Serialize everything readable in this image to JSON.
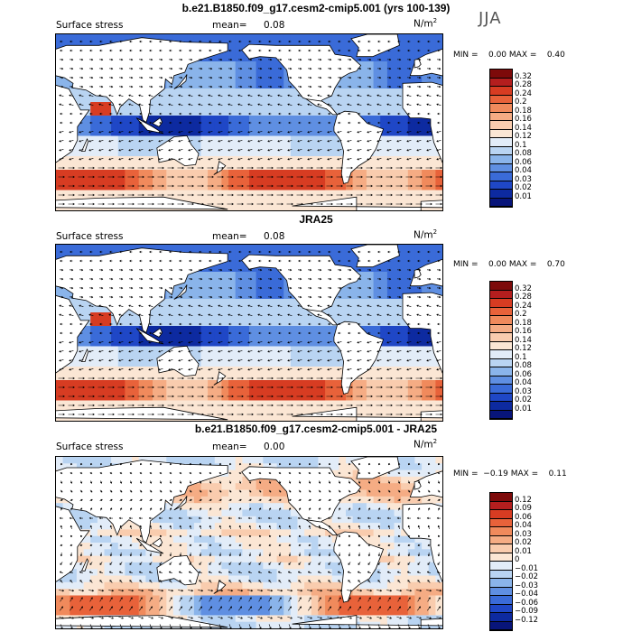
{
  "season": "JJA",
  "panels": [
    {
      "title": "b.e21.B1850.f09_g17.cesm2-cmip5.001 (yrs 100-139)",
      "left_label": "Surface stress",
      "mean_label": "mean=",
      "mean_value": "0.08",
      "unit": "N/m",
      "unit_exp": "2",
      "minmax": "MIN =    0.00 MAX =    0.40",
      "colorbar_labels": [
        "0.32",
        "0.28",
        "0.24",
        "0.2",
        "0.18",
        "0.16",
        "0.14",
        "0.12",
        "0.1",
        "0.08",
        "0.06",
        "0.04",
        "0.03",
        "0.02",
        "0.01"
      ],
      "colorbar_colors": [
        "#7d0a0a",
        "#b41e1e",
        "#d73c22",
        "#e8623a",
        "#f08a5c",
        "#f5ac84",
        "#f9ccae",
        "#fbe6d4",
        "#e2ecf8",
        "#b9d4f2",
        "#8ab4ea",
        "#5f8fe2",
        "#3a6bd8",
        "#1f47c6",
        "#0d2aa0",
        "#08157a"
      ],
      "field": "abs"
    },
    {
      "title": "JRA25",
      "left_label": "Surface stress",
      "mean_label": "mean=",
      "mean_value": "0.08",
      "unit": "N/m",
      "unit_exp": "2",
      "minmax": "MIN =    0.00 MAX =    0.70",
      "colorbar_labels": [
        "0.32",
        "0.28",
        "0.24",
        "0.2",
        "0.18",
        "0.16",
        "0.14",
        "0.12",
        "0.1",
        "0.08",
        "0.06",
        "0.04",
        "0.03",
        "0.02",
        "0.01"
      ],
      "colorbar_colors": [
        "#7d0a0a",
        "#b41e1e",
        "#d73c22",
        "#e8623a",
        "#f08a5c",
        "#f5ac84",
        "#f9ccae",
        "#fbe6d4",
        "#e2ecf8",
        "#b9d4f2",
        "#8ab4ea",
        "#5f8fe2",
        "#3a6bd8",
        "#1f47c6",
        "#0d2aa0",
        "#08157a"
      ],
      "field": "abs"
    },
    {
      "title": "b.e21.B1850.f09_g17.cesm2-cmip5.001 - JRA25",
      "left_label": "Surface stress",
      "mean_label": "mean=",
      "mean_value": "0.00",
      "unit": "N/m",
      "unit_exp": "2",
      "minmax": "MIN =  −0.19 MAX =    0.11",
      "colorbar_labels": [
        "0.12",
        "0.09",
        "0.06",
        "0.04",
        "0.03",
        "0.02",
        "0.01",
        "0",
        "−0.01",
        "−0.02",
        "−0.03",
        "−0.04",
        "−0.06",
        "−0.09",
        "−0.12"
      ],
      "colorbar_colors": [
        "#7d0a0a",
        "#b41e1e",
        "#d73c22",
        "#e8623a",
        "#f08a5c",
        "#f5ac84",
        "#f9ccae",
        "#fbe6d4",
        "#e2ecf8",
        "#b9d4f2",
        "#8ab4ea",
        "#5f8fe2",
        "#3a6bd8",
        "#1f47c6",
        "#0d2aa0",
        "#08157a"
      ],
      "field": "diff"
    }
  ]
}
